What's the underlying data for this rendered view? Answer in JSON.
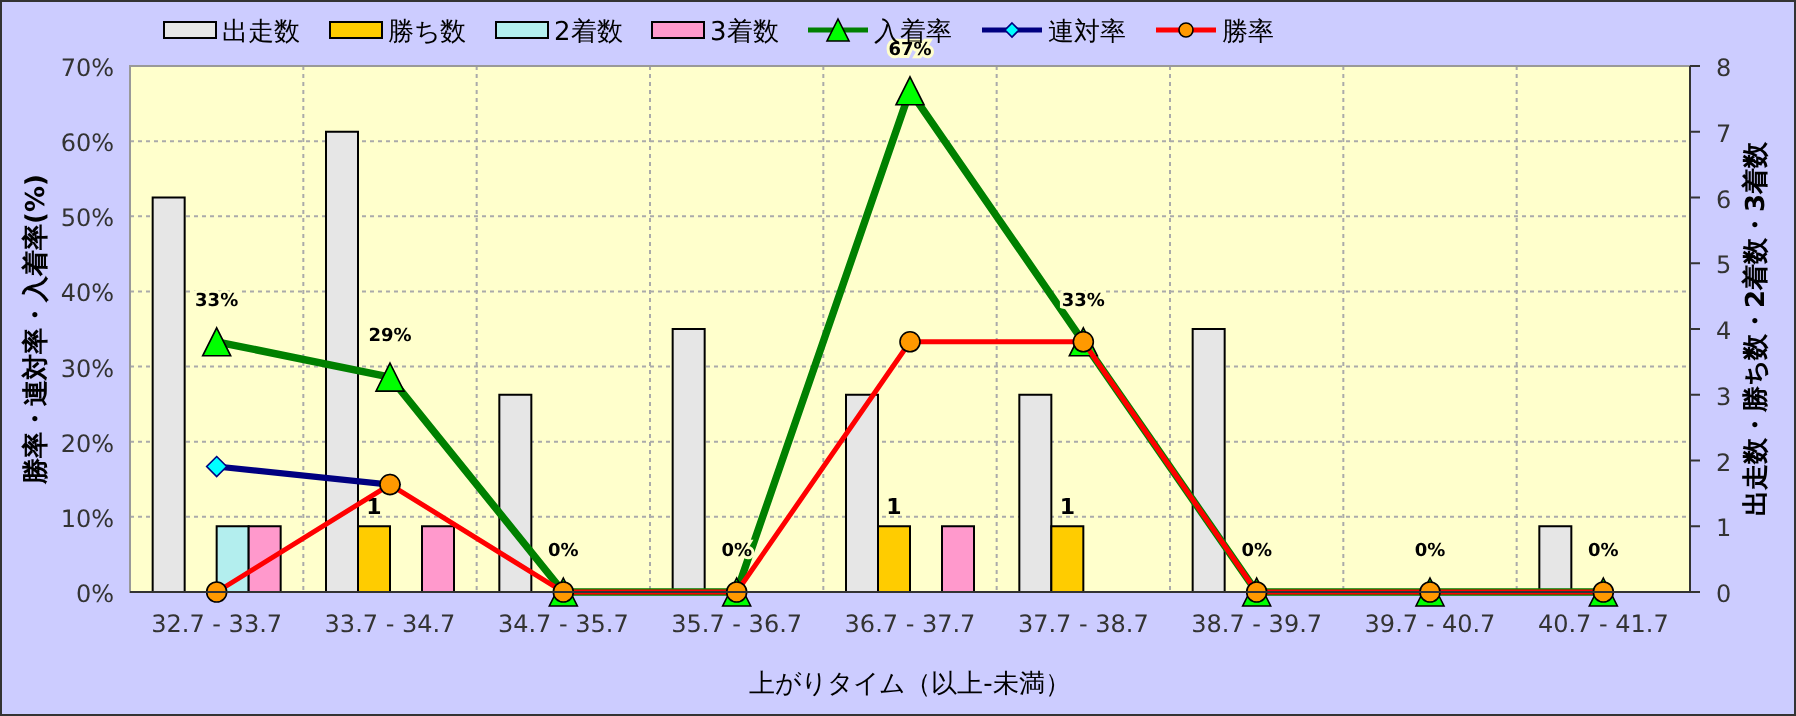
{
  "chart_data": {
    "type": "bar",
    "xlabel": "上がりタイム（以上-未満）",
    "ylabel": "勝率・連対率・入着率(%)",
    "y2label": "出走数・勝ち数・2着数・3着数",
    "categories": [
      "32.7 - 33.7",
      "33.7 - 34.7",
      "34.7 - 35.7",
      "35.7 - 36.7",
      "36.7 - 37.7",
      "37.7 - 38.7",
      "38.7 - 39.7",
      "39.7 - 40.7",
      "40.7 - 41.7"
    ],
    "series": [
      {
        "name": "出走数",
        "axis": "y2",
        "color": "#e6e6e6",
        "values": [
          6,
          7,
          3,
          4,
          3,
          3,
          4,
          0,
          1
        ]
      },
      {
        "name": "勝ち数",
        "axis": "y2",
        "color": "#ffcc00",
        "values": [
          0,
          1,
          0,
          0,
          1,
          1,
          0,
          0,
          0
        ],
        "value_labels": [
          null,
          "1",
          null,
          null,
          "1",
          "1",
          null,
          null,
          null
        ]
      },
      {
        "name": "2着数",
        "axis": "y2",
        "color": "#b3eeee",
        "values": [
          1,
          0,
          0,
          0,
          0,
          0,
          0,
          0,
          0
        ]
      },
      {
        "name": "3着数",
        "axis": "y2",
        "color": "#ff99cc",
        "values": [
          1,
          1,
          0,
          0,
          1,
          0,
          0,
          0,
          0
        ]
      },
      {
        "name": "入着率",
        "type": "line",
        "axis": "y",
        "color": "#008000",
        "marker": "triangle",
        "values": [
          33.3,
          28.6,
          0,
          0,
          66.7,
          33.3,
          0,
          0,
          0
        ],
        "value_labels": [
          "33%",
          "29%",
          "0%",
          "0%",
          "67%",
          "33%",
          "0%",
          "0%",
          "0%"
        ]
      },
      {
        "name": "連対率",
        "type": "line",
        "axis": "y",
        "color": "#000080",
        "marker": "diamond",
        "values": [
          16.7,
          14.3,
          null,
          null,
          null,
          null,
          null,
          null,
          null
        ]
      },
      {
        "name": "勝率",
        "type": "line",
        "axis": "y",
        "color": "#ff0000",
        "marker": "circle",
        "values": [
          0,
          14.3,
          0,
          0,
          33.3,
          33.3,
          0,
          0,
          0
        ]
      }
    ],
    "ylim": [
      0,
      70
    ],
    "yticks": [
      {
        "value": 0,
        "label": "0%"
      },
      {
        "value": 10,
        "label": "10%"
      },
      {
        "value": 20,
        "label": "20%"
      },
      {
        "value": 30,
        "label": "30%"
      },
      {
        "value": 40,
        "label": "40%"
      },
      {
        "value": 50,
        "label": "50%"
      },
      {
        "value": 60,
        "label": "60%"
      },
      {
        "value": 70,
        "label": "70%"
      }
    ],
    "y2lim": [
      0,
      8
    ],
    "y2ticks": [
      0,
      1,
      2,
      3,
      4,
      5,
      6,
      7,
      8
    ],
    "grid": true,
    "legend": "top",
    "line_style": "solid"
  }
}
